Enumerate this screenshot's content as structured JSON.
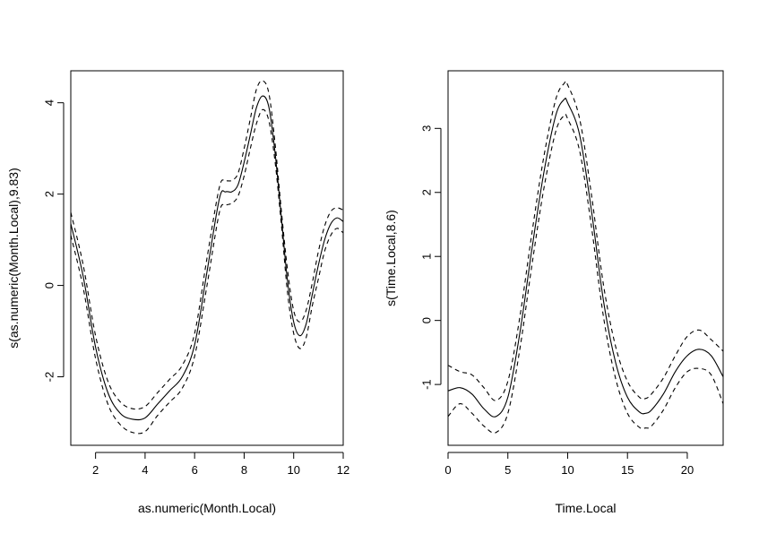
{
  "chart_data": [
    {
      "type": "line",
      "xlabel": "as.numeric(Month.Local)",
      "ylabel": "s(as.numeric(Month.Local),9.83)",
      "xlim": [
        1,
        12
      ],
      "ylim": [
        -3.5,
        4.7
      ],
      "xticks": [
        2,
        4,
        6,
        8,
        10,
        12
      ],
      "yticks": [
        -2,
        0,
        2,
        4
      ],
      "grid": false,
      "series": [
        {
          "line_style": "solid",
          "x": [
            1.0,
            1.5,
            2.0,
            2.5,
            3.0,
            3.5,
            4.0,
            4.5,
            5.0,
            5.5,
            6.0,
            6.5,
            7.0,
            7.25,
            7.5,
            7.75,
            8.0,
            8.25,
            8.5,
            8.75,
            9.0,
            9.25,
            9.5,
            9.75,
            10.0,
            10.25,
            10.5,
            10.75,
            11.0,
            11.25,
            11.5,
            11.75,
            12.0
          ],
          "y": [
            1.35,
            0.2,
            -1.35,
            -2.35,
            -2.8,
            -2.93,
            -2.9,
            -2.6,
            -2.3,
            -2.0,
            -1.3,
            0.3,
            1.9,
            2.05,
            2.05,
            2.2,
            2.7,
            3.3,
            3.9,
            4.15,
            3.9,
            2.9,
            1.5,
            0.1,
            -0.8,
            -1.1,
            -0.85,
            -0.2,
            0.45,
            1.0,
            1.35,
            1.48,
            1.4
          ]
        },
        {
          "line_style": "dashed",
          "x": [
            1.0,
            1.5,
            2.0,
            2.5,
            3.0,
            3.5,
            4.0,
            4.5,
            5.0,
            5.5,
            6.0,
            6.5,
            7.0,
            7.25,
            7.5,
            7.75,
            8.0,
            8.25,
            8.5,
            8.75,
            9.0,
            9.25,
            9.5,
            9.75,
            10.0,
            10.25,
            10.5,
            10.75,
            11.0,
            11.25,
            11.5,
            11.75,
            12.0
          ],
          "y": [
            1.6,
            0.45,
            -1.1,
            -2.1,
            -2.55,
            -2.7,
            -2.65,
            -2.35,
            -2.05,
            -1.75,
            -1.05,
            0.6,
            2.15,
            2.28,
            2.3,
            2.45,
            3.0,
            3.65,
            4.3,
            4.48,
            4.2,
            3.1,
            1.65,
            0.35,
            -0.55,
            -0.8,
            -0.55,
            0.05,
            0.75,
            1.3,
            1.62,
            1.7,
            1.65
          ]
        },
        {
          "line_style": "dashed",
          "x": [
            1.0,
            1.5,
            2.0,
            2.5,
            3.0,
            3.5,
            4.0,
            4.5,
            5.0,
            5.5,
            6.0,
            6.5,
            7.0,
            7.25,
            7.5,
            7.75,
            8.0,
            8.25,
            8.5,
            8.75,
            9.0,
            9.25,
            9.5,
            9.75,
            10.0,
            10.25,
            10.5,
            10.75,
            11.0,
            11.25,
            11.5,
            11.75,
            12.0
          ],
          "y": [
            1.1,
            -0.05,
            -1.6,
            -2.6,
            -3.05,
            -3.22,
            -3.2,
            -2.85,
            -2.55,
            -2.25,
            -1.55,
            0.0,
            1.6,
            1.75,
            1.8,
            1.95,
            2.4,
            3.0,
            3.55,
            3.85,
            3.6,
            2.7,
            1.35,
            -0.15,
            -1.05,
            -1.38,
            -1.15,
            -0.45,
            0.15,
            0.75,
            1.1,
            1.25,
            1.15
          ]
        }
      ]
    },
    {
      "type": "line",
      "xlabel": "Time.Local",
      "ylabel": "s(Time.Local,8.6)",
      "xlim": [
        0,
        23
      ],
      "ylim": [
        -1.95,
        3.9
      ],
      "xticks": [
        0,
        5,
        10,
        15,
        20
      ],
      "yticks": [
        -1,
        0,
        1,
        2,
        3
      ],
      "grid": false,
      "series": [
        {
          "line_style": "solid",
          "x": [
            0,
            1,
            2,
            3,
            4,
            5,
            6,
            7,
            8,
            9,
            9.7,
            10,
            11,
            12,
            13,
            14,
            15,
            16,
            16.5,
            17,
            18,
            19,
            20,
            21,
            22,
            23
          ],
          "y": [
            -1.1,
            -1.05,
            -1.15,
            -1.38,
            -1.5,
            -1.2,
            -0.2,
            1.1,
            2.3,
            3.2,
            3.45,
            3.4,
            2.9,
            1.7,
            0.3,
            -0.65,
            -1.2,
            -1.43,
            -1.45,
            -1.4,
            -1.15,
            -0.8,
            -0.55,
            -0.45,
            -0.55,
            -0.88
          ]
        },
        {
          "line_style": "dashed",
          "x": [
            0,
            1,
            2,
            3,
            4,
            5,
            6,
            7,
            8,
            9,
            9.7,
            10,
            11,
            12,
            13,
            14,
            15,
            16,
            16.5,
            17,
            18,
            19,
            20,
            21,
            22,
            23
          ],
          "y": [
            -0.7,
            -0.8,
            -0.85,
            -1.05,
            -1.25,
            -0.95,
            0.05,
            1.35,
            2.55,
            3.45,
            3.7,
            3.68,
            3.15,
            1.95,
            0.55,
            -0.4,
            -0.95,
            -1.2,
            -1.22,
            -1.15,
            -0.9,
            -0.55,
            -0.25,
            -0.15,
            -0.3,
            -0.48
          ]
        },
        {
          "line_style": "dashed",
          "x": [
            0,
            1,
            2,
            3,
            4,
            5,
            6,
            7,
            8,
            9,
            9.7,
            10,
            11,
            12,
            13,
            14,
            15,
            16,
            16.5,
            17,
            18,
            19,
            20,
            21,
            22,
            23
          ],
          "y": [
            -1.5,
            -1.3,
            -1.45,
            -1.65,
            -1.75,
            -1.45,
            -0.45,
            0.85,
            2.05,
            2.95,
            3.2,
            3.15,
            2.65,
            1.45,
            0.05,
            -0.9,
            -1.45,
            -1.67,
            -1.68,
            -1.65,
            -1.4,
            -1.05,
            -0.8,
            -0.75,
            -0.85,
            -1.3
          ]
        }
      ]
    }
  ]
}
